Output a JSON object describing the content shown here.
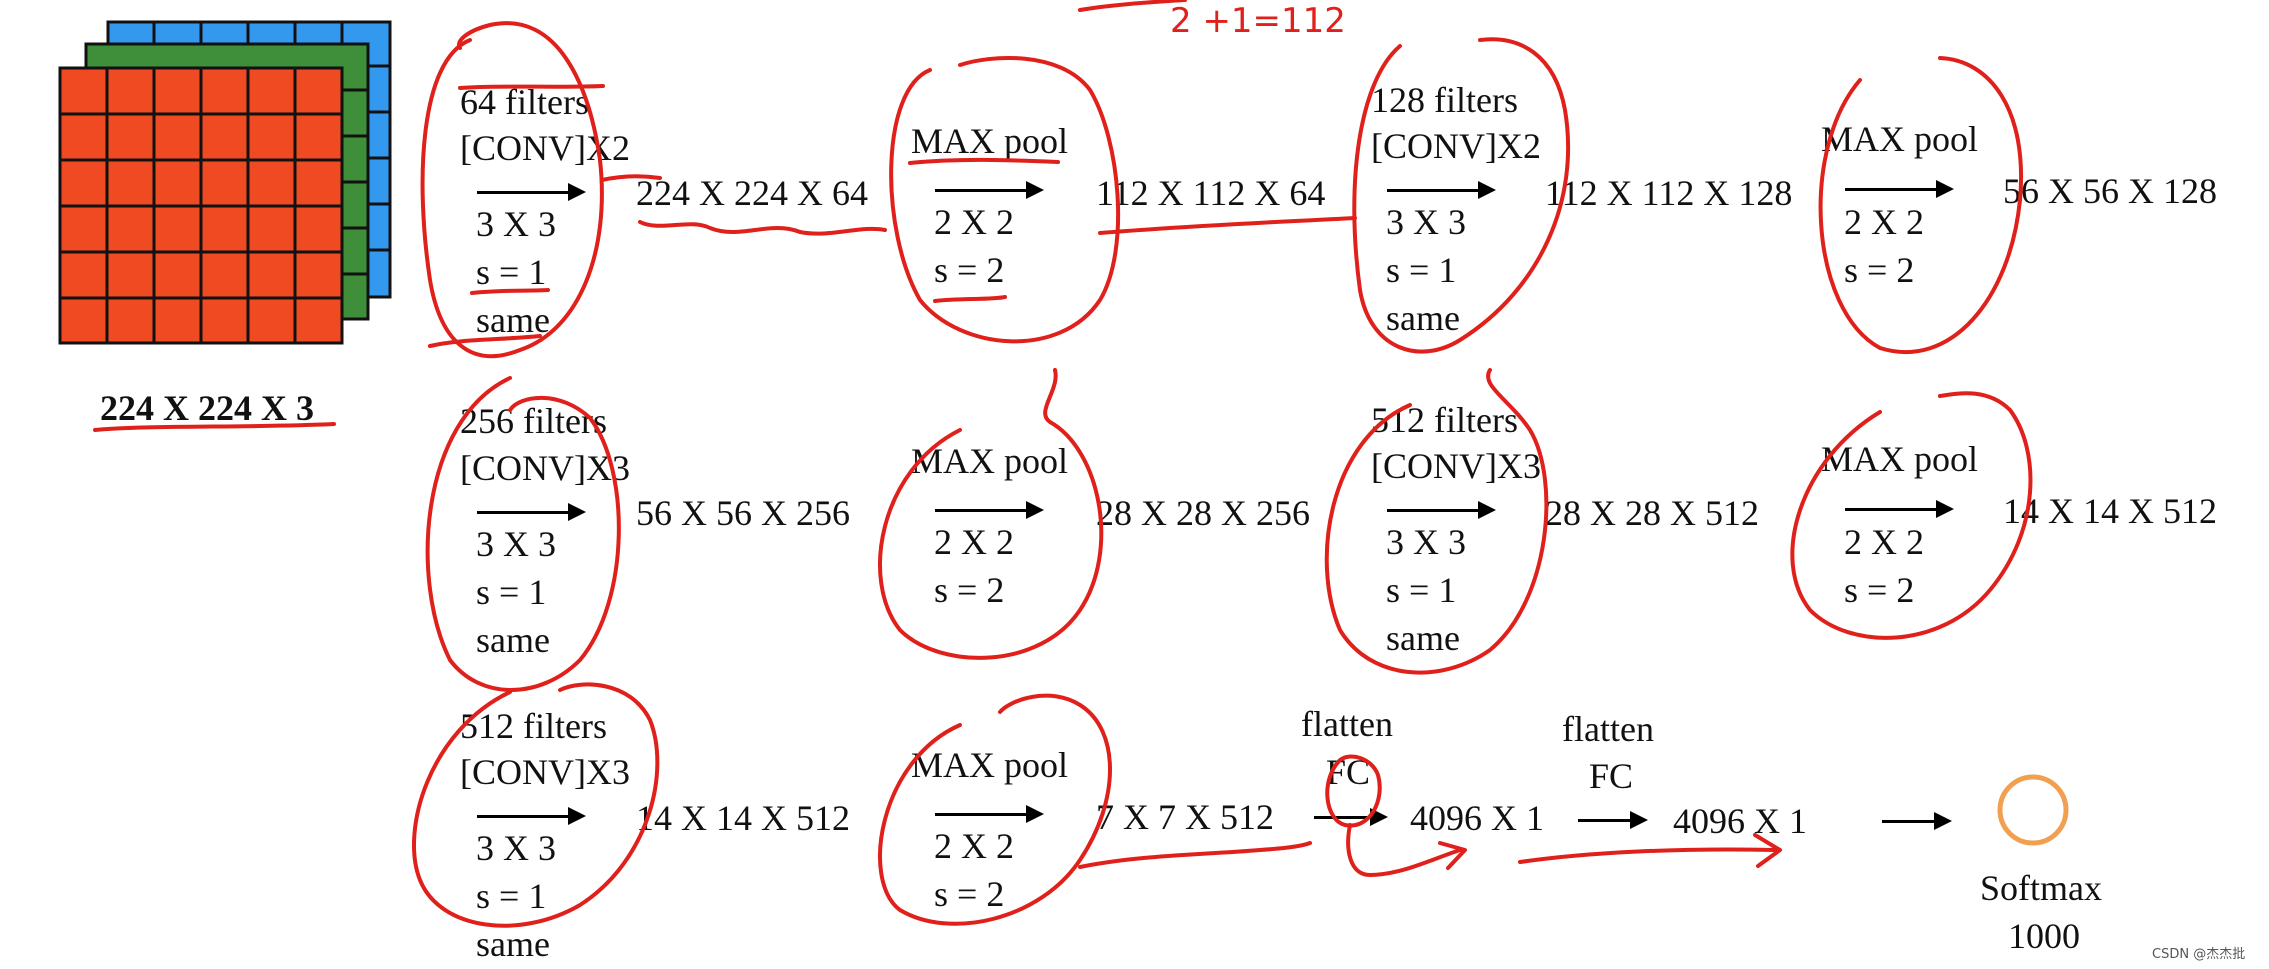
{
  "input": {
    "label": "224 X 224 X 3"
  },
  "rows": [
    {
      "conv": {
        "filters": "64 filters",
        "op": "[CONV]X2",
        "k": "3 X 3",
        "s": "s = 1",
        "pad": "same"
      },
      "after_conv": "224 X 224 X 64",
      "pool": {
        "name": "MAX pool",
        "k": "2 X 2",
        "s": "s = 2"
      },
      "after_pool": "112 X 112 X 64",
      "conv2": {
        "filters": "128 filters",
        "op": "[CONV]X2",
        "k": "3 X 3",
        "s": "s = 1",
        "pad": "same"
      },
      "after_conv2": "112 X 112 X 128",
      "pool2": {
        "name": "MAX pool",
        "k": "2 X 2",
        "s": "s = 2"
      },
      "after_pool2": "56 X 56 X 128"
    },
    {
      "conv": {
        "filters": "256 filters",
        "op": "[CONV]X3",
        "k": "3 X 3",
        "s": "s = 1",
        "pad": "same"
      },
      "after_conv": "56 X 56 X 256",
      "pool": {
        "name": "MAX pool",
        "k": "2 X 2",
        "s": "s = 2"
      },
      "after_pool": "28 X 28 X 256",
      "conv2": {
        "filters": "512 filters",
        "op": "[CONV]X3",
        "k": "3 X 3",
        "s": "s = 1",
        "pad": "same"
      },
      "after_conv2": "28 X 28 X 512",
      "pool2": {
        "name": "MAX pool",
        "k": "2 X 2",
        "s": "s = 2"
      },
      "after_pool2": "14 X 14 X 512"
    },
    {
      "conv": {
        "filters": "512 filters",
        "op": "[CONV]X3",
        "k": "3 X 3",
        "s": "s = 1",
        "pad": "same"
      },
      "after_conv": "14 X 14 X 512",
      "pool": {
        "name": "MAX pool",
        "k": "2 X 2",
        "s": "s = 2"
      },
      "after_pool": "7 X 7 X 512",
      "fc1": {
        "flatten": "flatten",
        "fc": "FC"
      },
      "after_fc1": "4096 X 1",
      "fc2": {
        "flatten": "flatten",
        "fc": "FC"
      },
      "after_fc2": "4096 X 1",
      "softmax": {
        "name": "Softmax",
        "units": "1000"
      }
    }
  ],
  "handwriting": {
    "top_note": "2  +1=112"
  },
  "watermark": "CSDN @杰杰批",
  "colors": {
    "ink": "#e0201b",
    "front_grid": "#f04a23",
    "mid_grid": "#3e8e3a",
    "back_grid": "#3399ee",
    "softmax": "#f0a050"
  }
}
